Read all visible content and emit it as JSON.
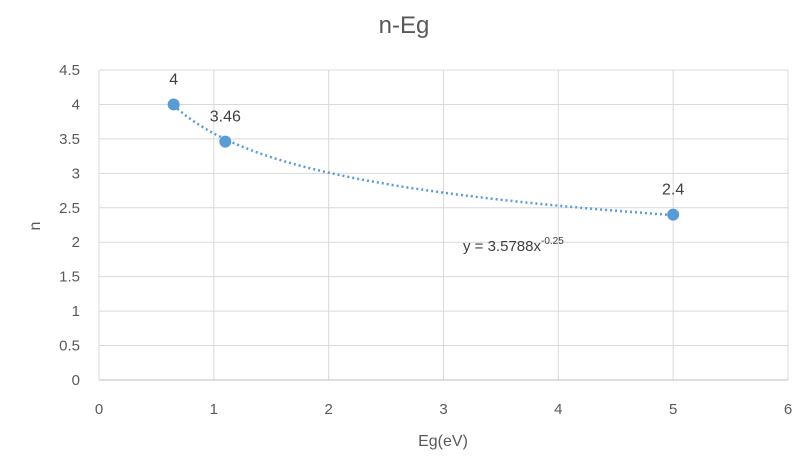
{
  "chart_data": {
    "type": "scatter",
    "title": "n-Eg",
    "xlabel": "Eg(eV)",
    "ylabel": "n",
    "xlim": [
      0,
      6
    ],
    "ylim": [
      0,
      4.5
    ],
    "x_ticks": [
      0,
      1,
      2,
      3,
      4,
      5,
      6
    ],
    "y_ticks": [
      0,
      0.5,
      1,
      1.5,
      2,
      2.5,
      3,
      3.5,
      4,
      4.5
    ],
    "x_tick_labels": [
      "0",
      "1",
      "2",
      "3",
      "4",
      "5",
      "6"
    ],
    "y_tick_labels": [
      "0",
      "0.5",
      "1",
      "1.5",
      "2",
      "2.5",
      "3",
      "3.5",
      "4",
      "4.5"
    ],
    "grid": true,
    "legend": "none",
    "series": [
      {
        "x": [
          0.65,
          1.1,
          5.0
        ],
        "y": [
          4,
          3.46,
          2.4
        ],
        "labels": [
          "4",
          "3.46",
          "2.4"
        ],
        "color": "#5b9bd5"
      }
    ],
    "trendline": {
      "type": "power",
      "a": 3.5788,
      "b": -0.25,
      "x_range": [
        0.65,
        5.0
      ],
      "color": "#5b9bd5",
      "style": "dotted",
      "equation_prefix": "y = 3.5788x",
      "equation_exponent": "-0.25"
    }
  }
}
